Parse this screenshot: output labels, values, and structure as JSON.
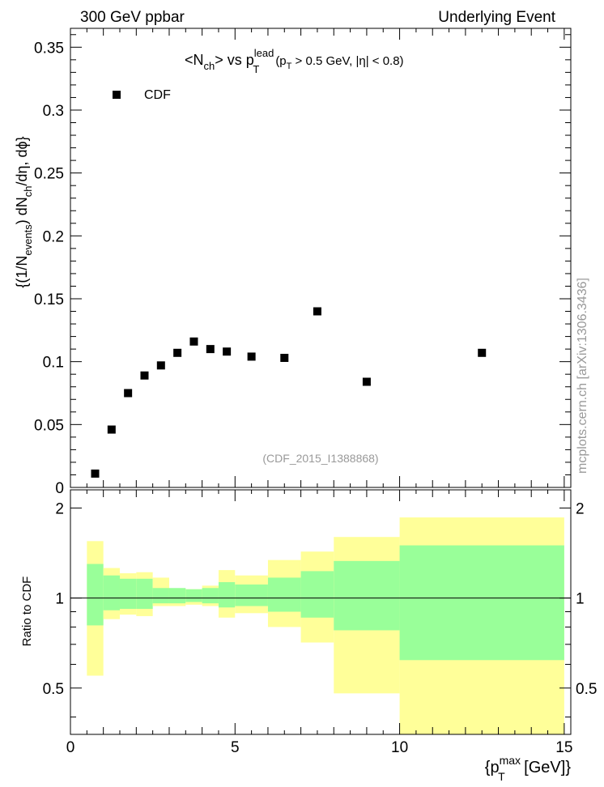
{
  "header": {
    "left": "300 GeV ppbar",
    "right": "Underlying Event"
  },
  "plot": {
    "title_main": "<N",
    "title_ch": "ch",
    "title_vs": "> vs p",
    "title_lead": "lead",
    "title_T": "T",
    "title_cut_open": "(p",
    "title_cut_T": "T",
    "title_cut_rest": " > 0.5 GeV, |η| < 0.8)",
    "legend_label": "CDF",
    "analysis_tag": "(CDF_2015_I1388868)",
    "side_credit": "mcplots.cern.ch [arXiv:1306.3436]",
    "ylabel_part1": "{(1/N",
    "ylabel_events": "events",
    "ylabel_part2": ") dN",
    "ylabel_ch": "ch",
    "ylabel_part3": "/dη, dϕ}",
    "ratio_ylabel": "Ratio to CDF",
    "xlabel_open": "{p",
    "xlabel_max": "max",
    "xlabel_T": "T",
    "xlabel_close": " [GeV]}"
  },
  "chart_data": {
    "type": "scatter",
    "main": {
      "xlim": [
        0,
        15.2
      ],
      "ylim": [
        0,
        0.365
      ],
      "yticks": [
        0,
        0.05,
        0.1,
        0.15,
        0.2,
        0.25,
        0.3,
        0.35
      ],
      "ytick_labels": [
        "0",
        "0.05",
        "0.1",
        "0.15",
        "0.2",
        "0.25",
        "0.3",
        "0.35"
      ],
      "series": [
        {
          "name": "CDF",
          "x": [
            0.75,
            1.25,
            1.75,
            2.25,
            2.75,
            3.25,
            3.75,
            4.25,
            4.75,
            5.5,
            6.5,
            7.5,
            9.0,
            12.5
          ],
          "y": [
            0.011,
            0.046,
            0.075,
            0.089,
            0.097,
            0.107,
            0.116,
            0.11,
            0.108,
            0.104,
            0.103,
            0.14,
            0.084,
            0.107
          ]
        }
      ]
    },
    "ratio": {
      "xlim": [
        0,
        15.2
      ],
      "ylim": [
        0.35,
        2.3
      ],
      "yticks": [
        0.5,
        1,
        2
      ],
      "ytick_labels": [
        "0.5",
        "1",
        "2"
      ],
      "xticks": [
        0,
        5,
        10,
        15
      ],
      "xtick_labels": [
        "0",
        "5",
        "10",
        "15"
      ],
      "bins": [
        {
          "x0": 0.5,
          "x1": 1.0,
          "green": [
            0.81,
            1.3
          ],
          "yellow": [
            0.55,
            1.55
          ]
        },
        {
          "x0": 1.0,
          "x1": 1.5,
          "green": [
            0.91,
            1.19
          ],
          "yellow": [
            0.85,
            1.26
          ]
        },
        {
          "x0": 1.5,
          "x1": 2.0,
          "green": [
            0.92,
            1.16
          ],
          "yellow": [
            0.88,
            1.21
          ]
        },
        {
          "x0": 2.0,
          "x1": 2.5,
          "green": [
            0.92,
            1.16
          ],
          "yellow": [
            0.87,
            1.22
          ]
        },
        {
          "x0": 2.5,
          "x1": 3.0,
          "green": [
            0.96,
            1.08
          ],
          "yellow": [
            0.94,
            1.17
          ]
        },
        {
          "x0": 3.0,
          "x1": 3.5,
          "green": [
            0.96,
            1.08
          ],
          "yellow": [
            0.94,
            1.07
          ]
        },
        {
          "x0": 3.5,
          "x1": 4.0,
          "green": [
            0.97,
            1.07
          ],
          "yellow": [
            0.95,
            1.07
          ]
        },
        {
          "x0": 4.0,
          "x1": 4.5,
          "green": [
            0.96,
            1.08
          ],
          "yellow": [
            0.94,
            1.1
          ]
        },
        {
          "x0": 4.5,
          "x1": 5.0,
          "green": [
            0.93,
            1.13
          ],
          "yellow": [
            0.86,
            1.24
          ]
        },
        {
          "x0": 5.0,
          "x1": 6.0,
          "green": [
            0.94,
            1.11
          ],
          "yellow": [
            0.89,
            1.19
          ]
        },
        {
          "x0": 6.0,
          "x1": 7.0,
          "green": [
            0.9,
            1.17
          ],
          "yellow": [
            0.8,
            1.34
          ]
        },
        {
          "x0": 7.0,
          "x1": 8.0,
          "green": [
            0.86,
            1.23
          ],
          "yellow": [
            0.71,
            1.43
          ]
        },
        {
          "x0": 8.0,
          "x1": 10.0,
          "green": [
            0.78,
            1.33
          ],
          "yellow": [
            0.48,
            1.6
          ]
        },
        {
          "x0": 10.0,
          "x1": 15.0,
          "green": [
            0.62,
            1.5
          ],
          "yellow": [
            0.35,
            1.86
          ]
        }
      ]
    },
    "colors": {
      "green": "#99ff99",
      "yellow": "#ffff99",
      "marker": "#000000",
      "grey_text": "#999999"
    }
  }
}
